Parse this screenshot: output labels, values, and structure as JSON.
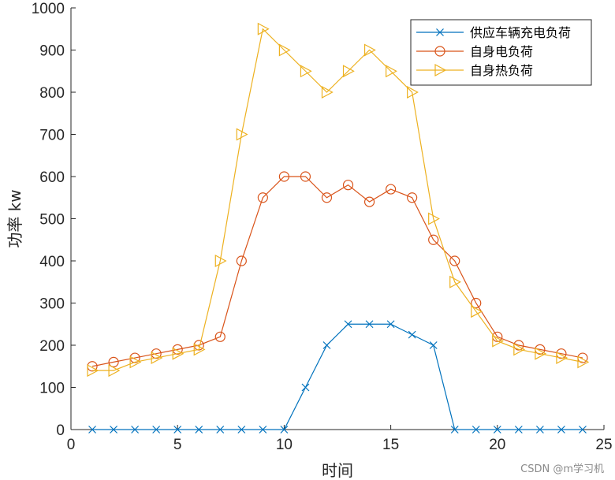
{
  "chart_data": {
    "type": "line",
    "xlabel": "时间",
    "ylabel": "功率 kw",
    "xlim": [
      0,
      25
    ],
    "ylim": [
      0,
      1000
    ],
    "xticks": [
      0,
      5,
      10,
      15,
      20,
      25
    ],
    "yticks": [
      0,
      100,
      200,
      300,
      400,
      500,
      600,
      700,
      800,
      900,
      1000
    ],
    "grid": false,
    "legend_position": "top-right",
    "x": [
      1,
      2,
      3,
      4,
      5,
      6,
      7,
      8,
      9,
      10,
      11,
      12,
      13,
      14,
      15,
      16,
      17,
      18,
      19,
      20,
      21,
      22,
      23,
      24
    ],
    "series": [
      {
        "name": "供应车辆充电负荷",
        "color": "#0072BD",
        "marker": "x",
        "values": [
          0,
          0,
          0,
          0,
          0,
          0,
          0,
          0,
          0,
          0,
          100,
          200,
          250,
          250,
          250,
          225,
          200,
          0,
          0,
          0,
          0,
          0,
          0,
          0
        ]
      },
      {
        "name": "自身电负荷",
        "color": "#D95319",
        "marker": "circle",
        "values": [
          150,
          160,
          170,
          180,
          190,
          200,
          220,
          400,
          550,
          600,
          600,
          550,
          580,
          540,
          570,
          550,
          450,
          400,
          300,
          220,
          200,
          190,
          180,
          170
        ]
      },
      {
        "name": "自身热负荷",
        "color": "#EDB120",
        "marker": "triangle-right",
        "values": [
          140,
          140,
          160,
          170,
          180,
          190,
          400,
          700,
          950,
          900,
          850,
          800,
          850,
          900,
          850,
          800,
          500,
          350,
          280,
          210,
          190,
          180,
          170,
          160
        ]
      }
    ]
  },
  "watermark": "CSDN @m学习机"
}
